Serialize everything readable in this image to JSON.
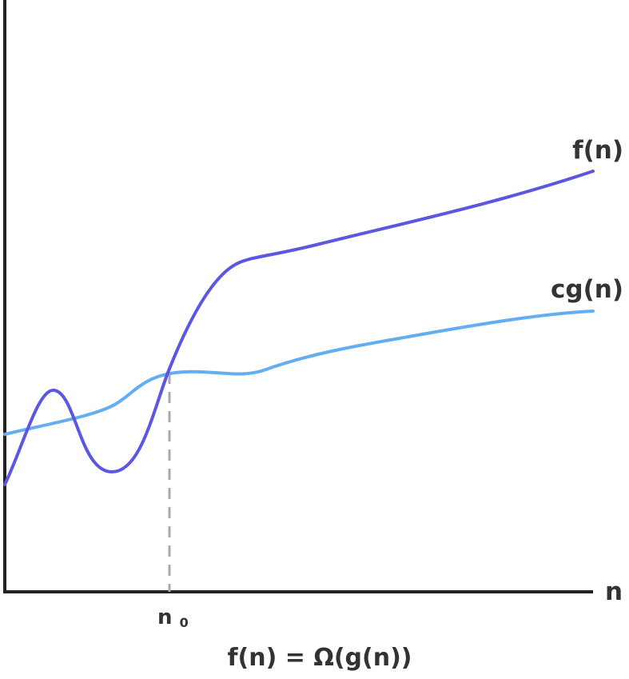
{
  "labels": {
    "x_axis": "n",
    "n0_main": "n",
    "n0_sub": "0",
    "f_curve": "f(n)",
    "cg_curve": "cg(n)",
    "caption": "f(n) = Ω(g(n))"
  },
  "colors": {
    "axis": "#222222",
    "f_curve": "#5b57e3",
    "cg_curve": "#63adf2",
    "dashed_marker": "#aaaaaa",
    "text": "#333333"
  },
  "style": {
    "marker_line": "dashed"
  }
}
